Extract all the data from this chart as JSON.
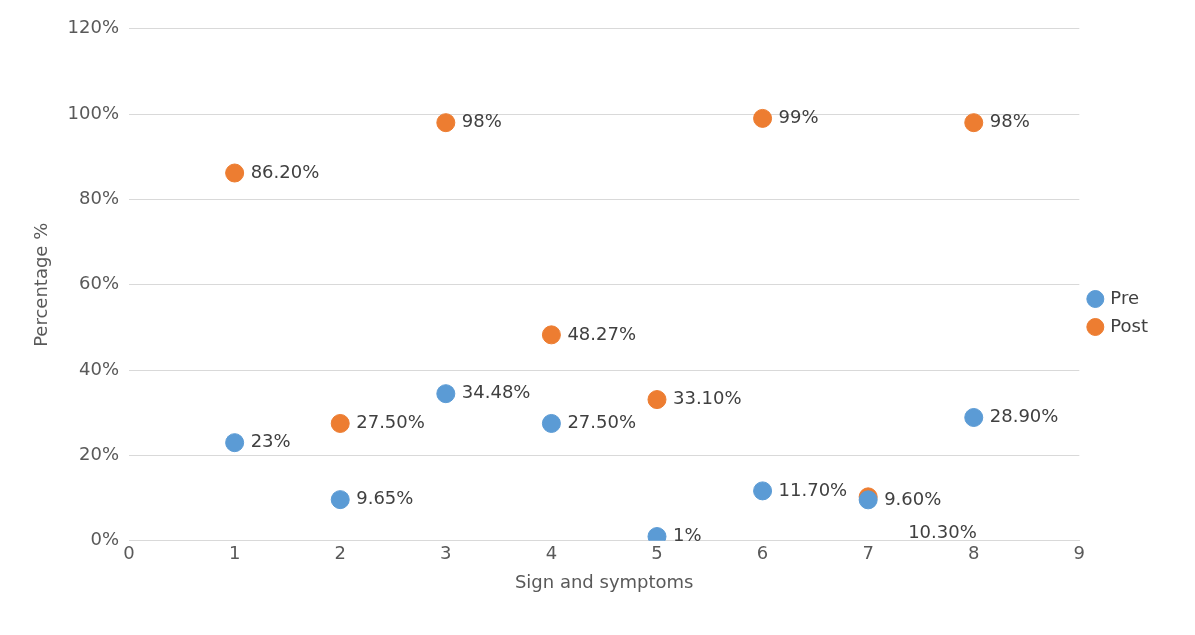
{
  "chart_data": {
    "type": "scatter",
    "xlabel": "Sign and symptoms",
    "ylabel": "Percentage %",
    "xlim": [
      0,
      9
    ],
    "xticks": [
      0,
      1,
      2,
      3,
      4,
      5,
      6,
      7,
      8,
      9
    ],
    "ylim": [
      0,
      120
    ],
    "yticks": [
      {
        "value": 0,
        "label": "0%"
      },
      {
        "value": 20,
        "label": "20%"
      },
      {
        "value": 40,
        "label": "40%"
      },
      {
        "value": 60,
        "label": "60%"
      },
      {
        "value": 80,
        "label": "80%"
      },
      {
        "value": 100,
        "label": "100%"
      },
      {
        "value": 120,
        "label": "120%"
      }
    ],
    "grid": "y",
    "legend": "right",
    "marker": "circle",
    "series": [
      {
        "name": "Pre",
        "color": "#5b9bd5",
        "x": [
          1,
          2,
          3,
          4,
          5,
          6,
          7,
          8
        ],
        "values": [
          23,
          9.65,
          34.48,
          27.5,
          1,
          11.7,
          9.6,
          28.9
        ],
        "value_labels": [
          "23%",
          "9.65%",
          "34.48%",
          "27.50%",
          "1%",
          "11.70%",
          "9.60%",
          "28.90%"
        ]
      },
      {
        "name": "Post",
        "color": "#ed7d31",
        "x": [
          1,
          2,
          3,
          4,
          5,
          6,
          7,
          8
        ],
        "values": [
          86.2,
          27.5,
          98,
          48.27,
          33.1,
          99,
          10.3,
          98
        ],
        "value_labels": [
          "86.20%",
          "27.50%",
          "98%",
          "48.27%",
          "33.10%",
          "99%",
          "10.30%",
          "98%"
        ]
      }
    ]
  }
}
